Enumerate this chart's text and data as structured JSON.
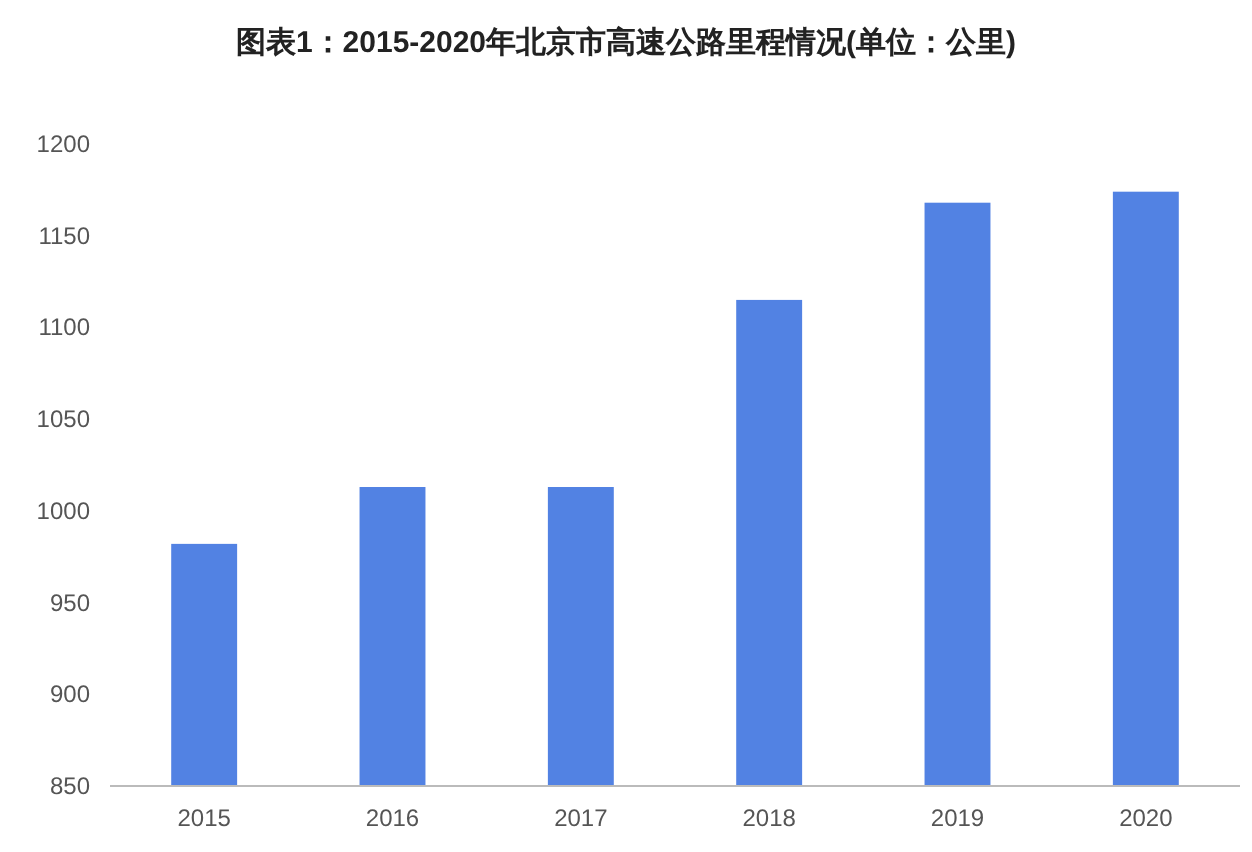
{
  "chart_data": {
    "type": "bar",
    "title": "图表1：2015-2020年北京市高速公路里程情况(单位：公里)",
    "categories": [
      "2015",
      "2016",
      "2017",
      "2018",
      "2019",
      "2020"
    ],
    "values": [
      982,
      1013,
      1013,
      1115,
      1168,
      1174
    ],
    "color": "#5282e3",
    "ylim": [
      850,
      1200
    ],
    "yticks": [
      850,
      900,
      950,
      1000,
      1050,
      1100,
      1150,
      1200
    ],
    "grid": false
  }
}
